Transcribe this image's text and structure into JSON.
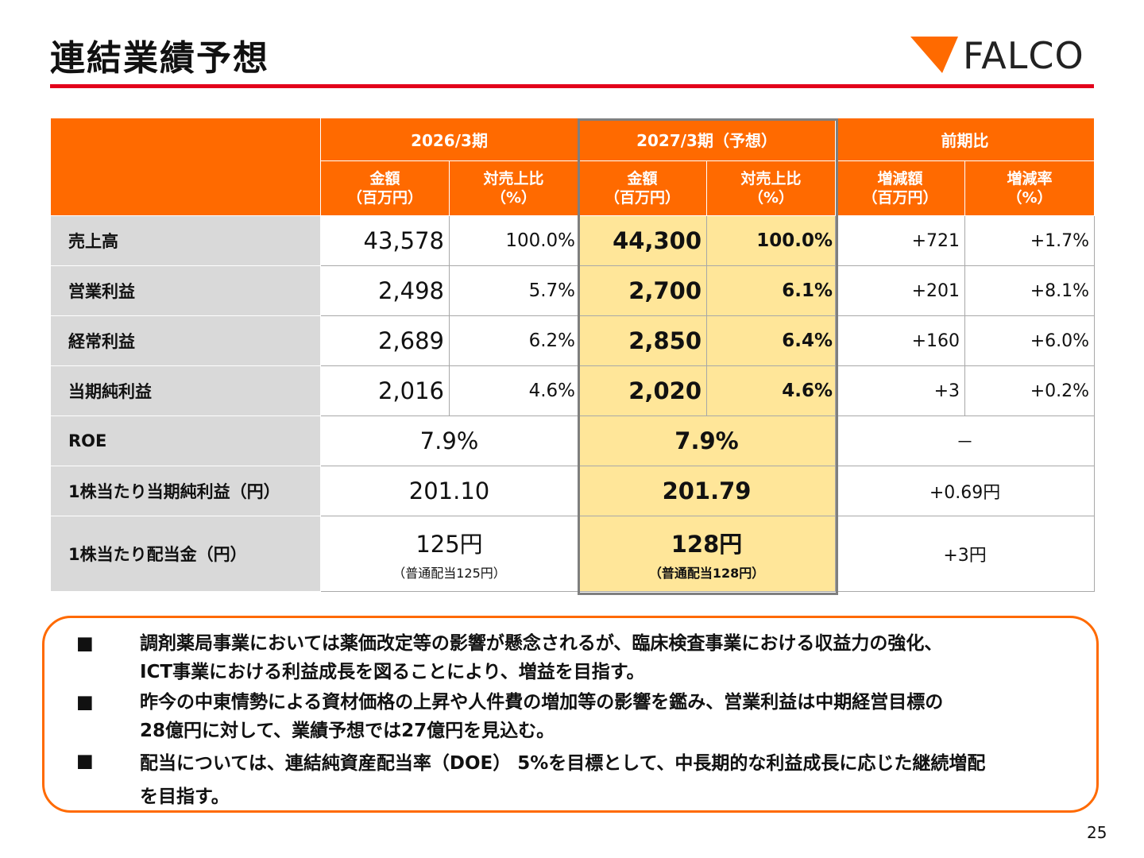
{
  "title": "連結業績予想",
  "logo": {
    "text": "FALCO",
    "mark_color": "#ff6a00"
  },
  "table": {
    "period_2026": "2026/3期",
    "period_2027": "2027/3期（予想）",
    "period_diff": "前期比",
    "sub": {
      "amount_26_1": "金額",
      "amount_26_2": "（百万円）",
      "ratio_26_1": "対売上比",
      "ratio_26_2": "（%）",
      "amount_27_1": "金額",
      "amount_27_2": "（百万円）",
      "ratio_27_1": "対売上比",
      "ratio_27_2": "（%）",
      "diff_amt_1": "増減額",
      "diff_amt_2": "（百万円）",
      "diff_rate_1": "増減率",
      "diff_rate_2": "（%）"
    },
    "rows": [
      {
        "label": "売上高",
        "v26": "43,578",
        "p26": "100.0%",
        "v27": "44,300",
        "p27": "100.0%",
        "d": "+721",
        "dp": "+1.7%"
      },
      {
        "label": "営業利益",
        "v26": "2,498",
        "p26": "5.7%",
        "v27": "2,700",
        "p27": "6.1%",
        "d": "+201",
        "dp": "+8.1%"
      },
      {
        "label": "経常利益",
        "v26": "2,689",
        "p26": "6.2%",
        "v27": "2,850",
        "p27": "6.4%",
        "d": "+160",
        "dp": "+6.0%"
      },
      {
        "label": "当期純利益",
        "v26": "2,016",
        "p26": "4.6%",
        "v27": "2,020",
        "p27": "4.6%",
        "d": "+3",
        "dp": "+0.2%"
      }
    ],
    "roe": {
      "label": "ROE",
      "v26": "7.9%",
      "v27": "7.9%",
      "d": "－"
    },
    "eps": {
      "label": "1株当たり当期純利益（円）",
      "v26": "201.10",
      "v27": "201.79",
      "d": "+0.69円"
    },
    "dps": {
      "label": "1株当たり配当金（円）",
      "v26": "125円",
      "n26": "（普通配当125円）",
      "v27": "128円",
      "n27": "（普通配当128円）",
      "d": "+3円"
    }
  },
  "notes": {
    "bullet": "■",
    "b1_l1": "調剤薬局事業においては薬価改定等の影響が懸念されるが、臨床検査事業における収益力の強化、",
    "b1_l2": "ICT事業における利益成長を図ることにより、増益を目指す。",
    "b2_l1": "昨今の中東情勢による資材価格の上昇や人件費の増加等の影響を鑑み、営業利益は中期経営目標の",
    "b2_l2": "28億円に対して、業績予想では27億円を見込む。",
    "b3_l1": "配当については、連結純資産配当率（DOE） 5%を目標として、中長期的な利益成長に応じた継続増配",
    "b3_l2": "を目指す。"
  },
  "page_number": "25"
}
